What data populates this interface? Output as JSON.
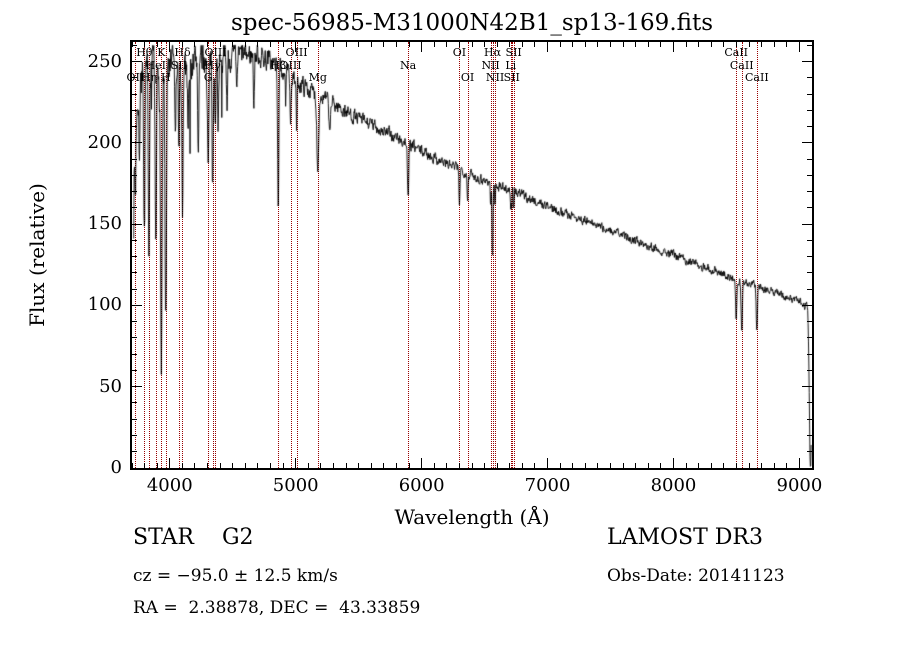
{
  "annotations": {
    "class_label": "STAR    G2",
    "survey": "LAMOST DR3",
    "cz": "cz = −95.0 ± 12.5 km/s",
    "obs_date": "Obs-Date: 20141123",
    "radec": "RA =  2.38878, DEC =  43.33859"
  },
  "chart_data": {
    "type": "line",
    "title": "spec-56985-M31000N42B1_sp13-169.fits",
    "xlabel": "Wavelength (Å)",
    "ylabel": "Flux (relative)",
    "xlim": [
      3700,
      9100
    ],
    "ylim": [
      0,
      262
    ],
    "x_ticks": [
      4000,
      5000,
      6000,
      7000,
      8000,
      9000
    ],
    "y_ticks": [
      0,
      50,
      100,
      150,
      200,
      250
    ],
    "x_minor_step": 100,
    "y_minor_step": 10,
    "grid": false,
    "series_color": "#000000",
    "marker_color": "#990000",
    "continuum": [
      [
        3700,
        215
      ],
      [
        3760,
        238
      ],
      [
        3820,
        240
      ],
      [
        3880,
        242
      ],
      [
        3940,
        245
      ],
      [
        4000,
        246
      ],
      [
        4060,
        247
      ],
      [
        4120,
        248
      ],
      [
        4200,
        250
      ],
      [
        4300,
        251
      ],
      [
        4400,
        252
      ],
      [
        4500,
        253
      ],
      [
        4600,
        254
      ],
      [
        4700,
        254
      ],
      [
        4800,
        250
      ],
      [
        4900,
        245
      ],
      [
        5000,
        238
      ],
      [
        5100,
        233
      ],
      [
        5200,
        228
      ],
      [
        5300,
        224
      ],
      [
        5400,
        219
      ],
      [
        5500,
        215
      ],
      [
        5600,
        211
      ],
      [
        5700,
        207
      ],
      [
        5800,
        203
      ],
      [
        5900,
        199
      ],
      [
        6000,
        195
      ],
      [
        6100,
        191
      ],
      [
        6200,
        187
      ],
      [
        6300,
        184
      ],
      [
        6400,
        180
      ],
      [
        6500,
        177
      ],
      [
        6600,
        174
      ],
      [
        6700,
        171
      ],
      [
        6800,
        168
      ],
      [
        6900,
        164
      ],
      [
        7000,
        161
      ],
      [
        7100,
        158
      ],
      [
        7200,
        155
      ],
      [
        7300,
        152
      ],
      [
        7400,
        149
      ],
      [
        7500,
        146
      ],
      [
        7600,
        143
      ],
      [
        7700,
        140
      ],
      [
        7800,
        137
      ],
      [
        7900,
        134
      ],
      [
        8000,
        131
      ],
      [
        8100,
        128
      ],
      [
        8200,
        125
      ],
      [
        8300,
        122
      ],
      [
        8400,
        119
      ],
      [
        8500,
        116
      ],
      [
        8600,
        114
      ],
      [
        8700,
        111
      ],
      [
        8800,
        108
      ],
      [
        8900,
        105
      ],
      [
        9000,
        102
      ],
      [
        9100,
        98
      ]
    ],
    "features": [
      {
        "wl": 3727,
        "label": "OII",
        "row": 3,
        "depth": 55,
        "width": 5
      },
      {
        "wl": 3798,
        "label": "Hθ",
        "row": 1,
        "depth": 90,
        "width": 5
      },
      {
        "wl": 3835,
        "label": "Hη",
        "row": 3,
        "depth": 110,
        "width": 5
      },
      {
        "wl": 3889,
        "label": "HeI",
        "row": 2,
        "depth": 120,
        "width": 5
      },
      {
        "wl": 3933,
        "label": "K",
        "row": 1,
        "depth": 185,
        "width": 6
      },
      {
        "wl": 3968,
        "label": "H",
        "row": 3,
        "depth": 165,
        "width": 6
      },
      {
        "wl": 4072,
        "label": "SII",
        "row": 2,
        "depth": 55,
        "width": 4
      },
      {
        "wl": 4101,
        "label": "Hδ",
        "row": 1,
        "depth": 85,
        "width": 5
      },
      {
        "wl": 4305,
        "label": "G",
        "row": 3,
        "depth": 65,
        "width": 6
      },
      {
        "wl": 4340,
        "label": "Hγ",
        "row": 2,
        "depth": 80,
        "width": 5
      },
      {
        "wl": 4363,
        "label": "OIII",
        "row": 1,
        "depth": 35,
        "width": 4
      },
      {
        "wl": 4861,
        "label": "Hβ",
        "row": 2,
        "depth": 85,
        "width": 5
      },
      {
        "wl": 4959,
        "label": "OIII",
        "row": 2,
        "depth": 22,
        "width": 4
      },
      {
        "wl": 5007,
        "label": "OIII",
        "row": 1,
        "depth": 28,
        "width": 4
      },
      {
        "wl": 5175,
        "label": "Mg",
        "row": 3,
        "depth": 45,
        "width": 7
      },
      {
        "wl": 5893,
        "label": "Na",
        "row": 2,
        "depth": 35,
        "width": 5
      },
      {
        "wl": 6300,
        "label": "OI",
        "row": 1,
        "depth": 20,
        "width": 4
      },
      {
        "wl": 6365,
        "label": "OI",
        "row": 3,
        "depth": 15,
        "width": 4
      },
      {
        "wl": 6548,
        "label": "NII",
        "row": 2,
        "depth": 14,
        "width": 3
      },
      {
        "wl": 6563,
        "label": "Hα",
        "row": 1,
        "depth": 45,
        "width": 4
      },
      {
        "wl": 6583,
        "label": "NII",
        "row": 3,
        "depth": 14,
        "width": 3
      },
      {
        "wl": 6708,
        "label": "Li",
        "row": 2,
        "depth": 9,
        "width": 3
      },
      {
        "wl": 6716,
        "label": "SII",
        "row": 3,
        "depth": 11,
        "width": 3
      },
      {
        "wl": 6731,
        "label": "SII",
        "row": 1,
        "depth": 11,
        "width": 3
      },
      {
        "wl": 8498,
        "label": "CaII",
        "row": 1,
        "depth": 26,
        "width": 5
      },
      {
        "wl": 8542,
        "label": "CaII",
        "row": 2,
        "depth": 30,
        "width": 5
      },
      {
        "wl": 8662,
        "label": "CaII",
        "row": 3,
        "depth": 28,
        "width": 5
      }
    ],
    "unlabeled_dips": [
      {
        "wl": 3705,
        "depth": 120,
        "width": 8
      },
      {
        "wl": 3760,
        "depth": 45,
        "width": 4
      },
      {
        "wl": 4045,
        "depth": 45,
        "width": 4
      },
      {
        "wl": 4144,
        "depth": 35,
        "width": 4
      },
      {
        "wl": 4226,
        "depth": 55,
        "width": 4
      },
      {
        "wl": 4383,
        "depth": 40,
        "width": 4
      },
      {
        "wl": 4455,
        "depth": 28,
        "width": 4
      },
      {
        "wl": 4531,
        "depth": 25,
        "width": 4
      },
      {
        "wl": 4668,
        "depth": 30,
        "width": 4
      },
      {
        "wl": 4920,
        "depth": 20,
        "width": 4
      },
      {
        "wl": 5270,
        "depth": 22,
        "width": 5
      },
      {
        "wl": 9088,
        "depth": 100,
        "width": 9
      }
    ],
    "noise": {
      "seed": 7,
      "amp_blue": 12,
      "amp_red": 2.2,
      "scale_wl": 900
    }
  }
}
